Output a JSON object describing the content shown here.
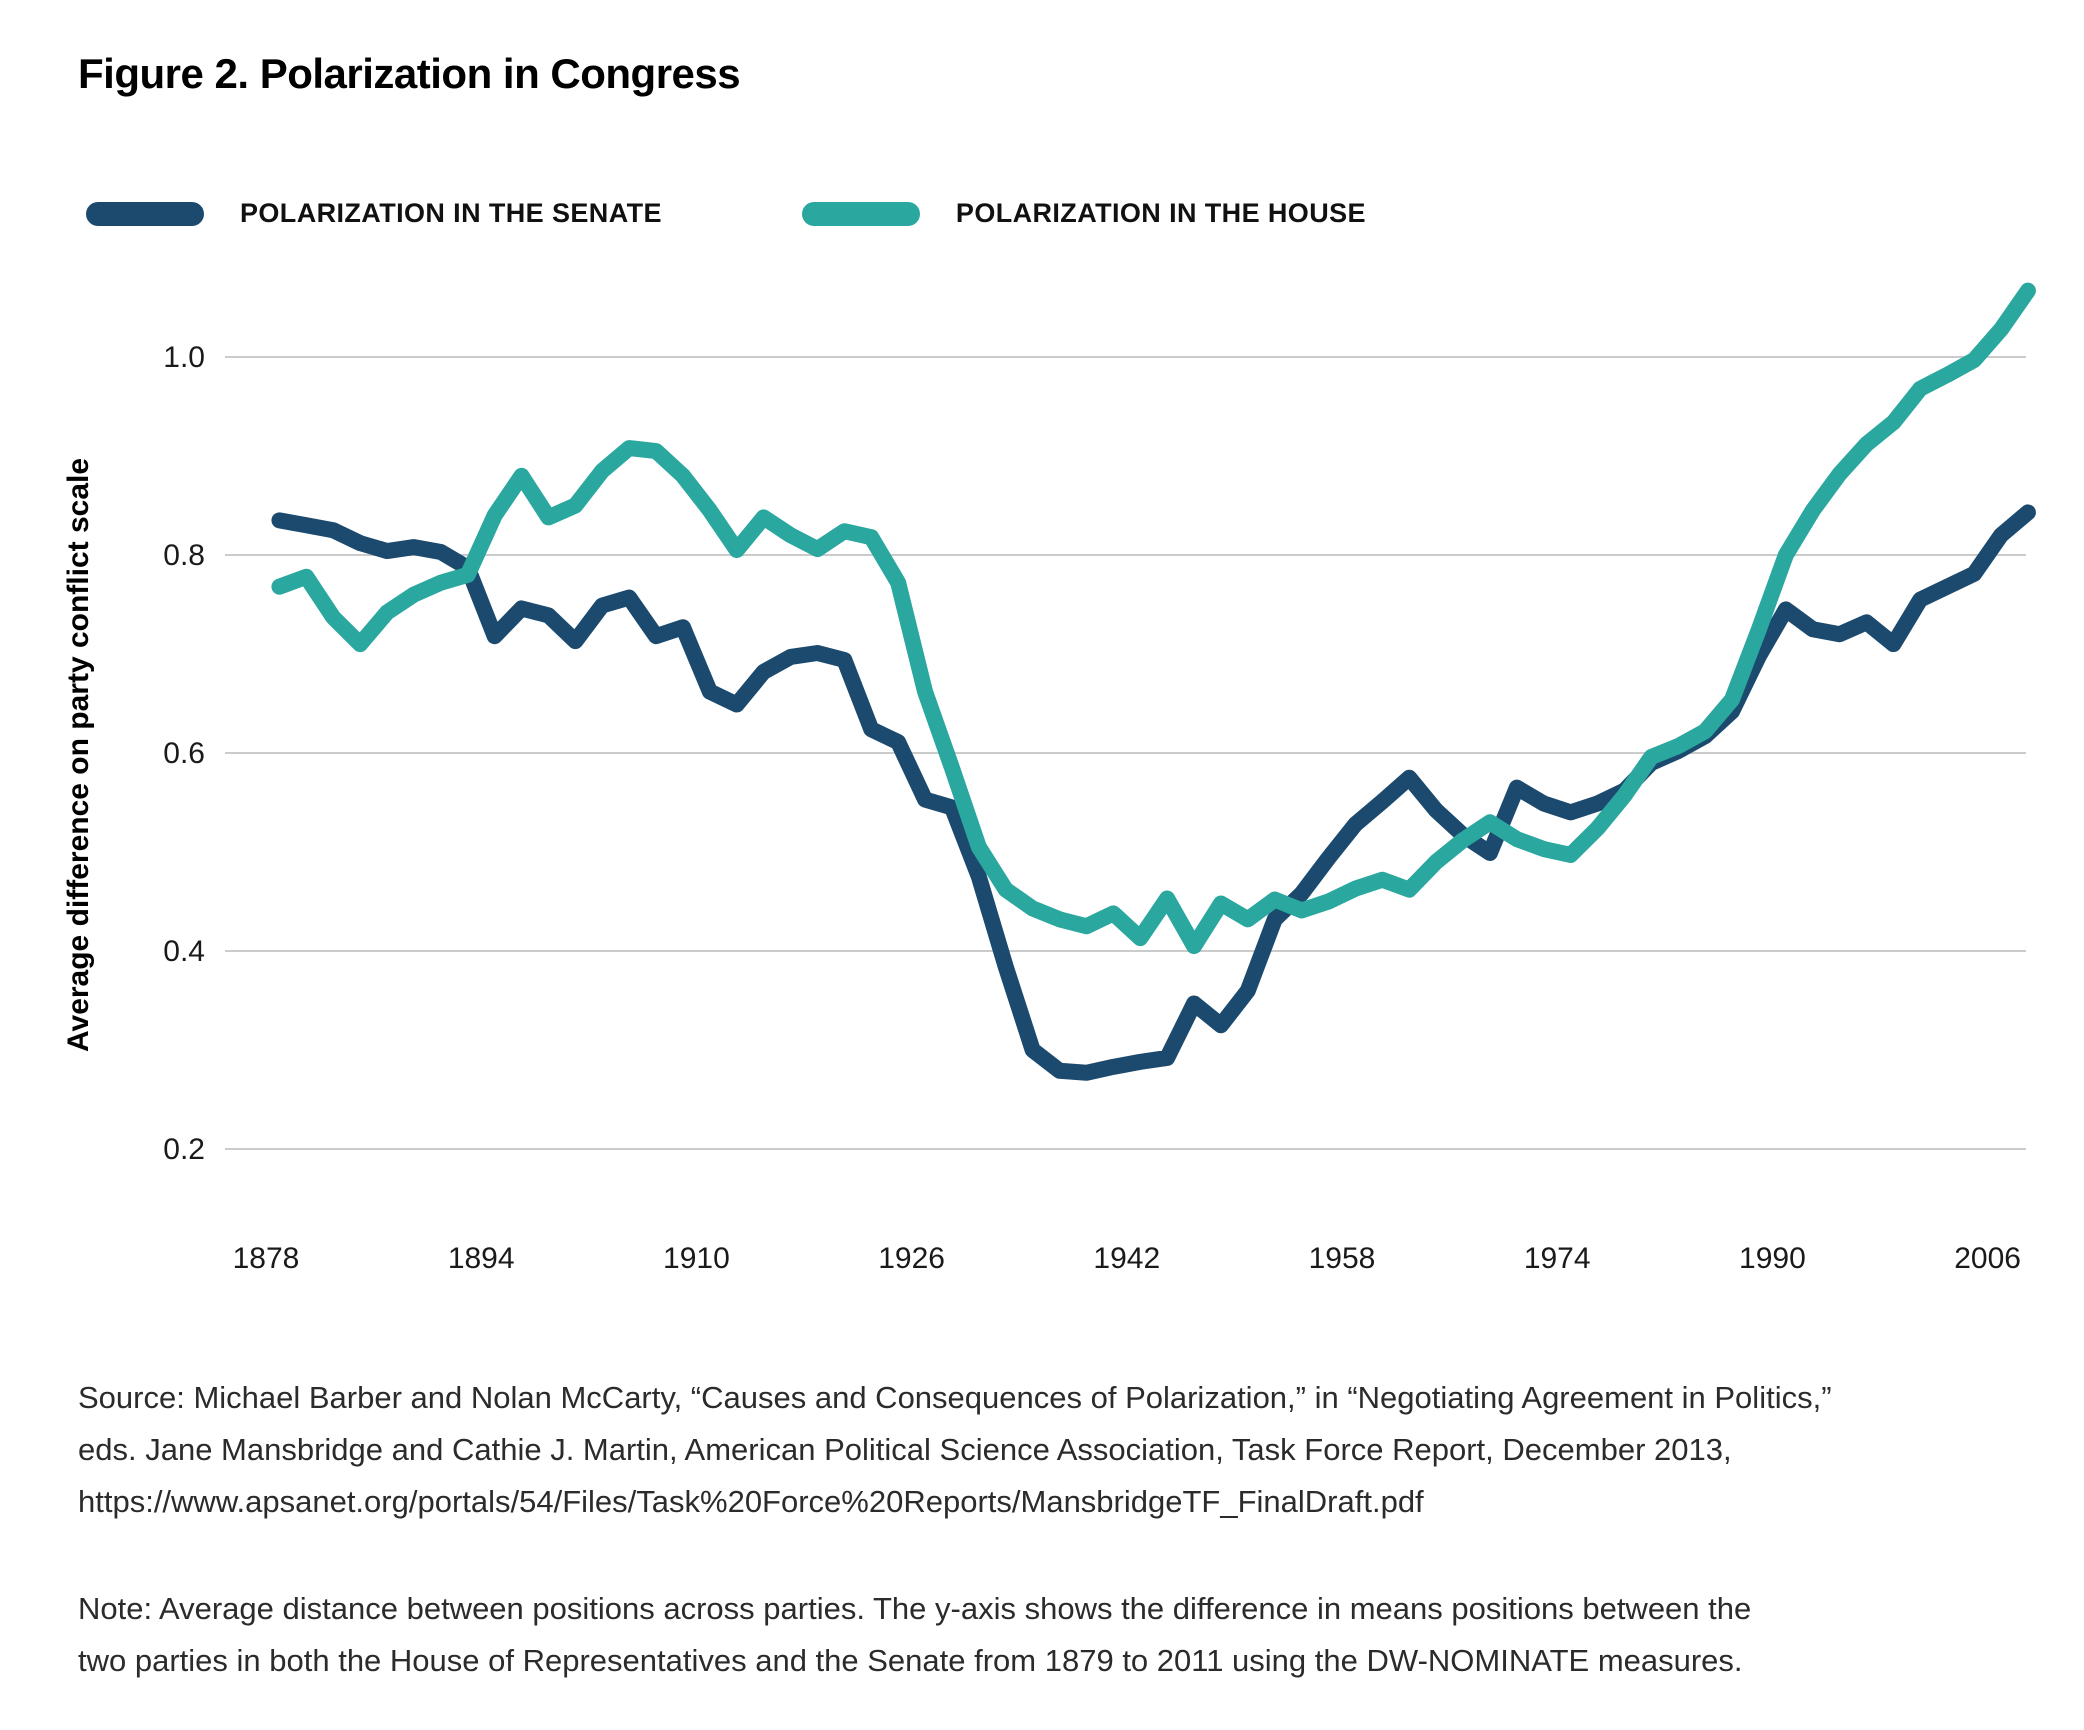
{
  "figure": {
    "title": "Figure 2. Polarization in Congress"
  },
  "legend": {
    "senate_label": "POLARIZATION IN THE SENATE",
    "house_label": "POLARIZATION IN THE HOUSE"
  },
  "colors": {
    "senate": "#1B4A6E",
    "house": "#2AA79E",
    "gridline": "#CBCBCB",
    "axis_text": "#1A1A1A"
  },
  "chart_data": {
    "type": "line",
    "title": "Figure 2. Polarization in Congress",
    "xlabel": "",
    "ylabel": "Average difference on party conflict scale",
    "x_ticks": [
      1878,
      1894,
      1910,
      1926,
      1942,
      1958,
      1974,
      1990,
      2006
    ],
    "y_ticks": [
      1.0,
      0.8,
      0.6,
      0.4,
      0.2
    ],
    "ylim": [
      0.13,
      1.12
    ],
    "xlim": [
      1877,
      2010
    ],
    "grid": "horizontal-only",
    "legend_position": "top-left",
    "x": [
      1879,
      1881,
      1883,
      1885,
      1887,
      1889,
      1891,
      1893,
      1895,
      1897,
      1899,
      1901,
      1903,
      1905,
      1907,
      1909,
      1911,
      1913,
      1915,
      1917,
      1919,
      1921,
      1923,
      1925,
      1927,
      1929,
      1931,
      1933,
      1935,
      1937,
      1939,
      1941,
      1943,
      1945,
      1947,
      1949,
      1951,
      1953,
      1955,
      1957,
      1959,
      1961,
      1963,
      1965,
      1967,
      1969,
      1971,
      1973,
      1975,
      1977,
      1979,
      1981,
      1983,
      1985,
      1987,
      1989,
      1991,
      1993,
      1995,
      1997,
      1999,
      2001,
      2003,
      2005,
      2007,
      2009
    ],
    "series": [
      {
        "name": "POLARIZATION IN THE SENATE",
        "color": "#1B4A6E",
        "values": [
          0.835,
          0.83,
          0.825,
          0.812,
          0.804,
          0.808,
          0.803,
          0.787,
          0.718,
          0.746,
          0.739,
          0.713,
          0.749,
          0.757,
          0.718,
          0.727,
          0.662,
          0.649,
          0.682,
          0.697,
          0.701,
          0.694,
          0.624,
          0.611,
          0.553,
          0.545,
          0.475,
          0.384,
          0.3,
          0.279,
          0.277,
          0.283,
          0.288,
          0.292,
          0.347,
          0.325,
          0.36,
          0.432,
          0.458,
          0.494,
          0.528,
          0.551,
          0.575,
          0.542,
          0.517,
          0.499,
          0.565,
          0.549,
          0.54,
          0.549,
          0.562,
          0.59,
          0.602,
          0.617,
          0.642,
          0.698,
          0.745,
          0.725,
          0.72,
          0.732,
          0.71,
          0.755,
          0.768,
          0.781,
          0.82,
          0.843
        ]
      },
      {
        "name": "POLARIZATION IN THE HOUSE",
        "color": "#2AA79E",
        "values": [
          0.768,
          0.778,
          0.737,
          0.71,
          0.742,
          0.76,
          0.772,
          0.78,
          0.84,
          0.88,
          0.838,
          0.85,
          0.885,
          0.908,
          0.905,
          0.88,
          0.845,
          0.805,
          0.838,
          0.82,
          0.806,
          0.824,
          0.818,
          0.772,
          0.662,
          0.585,
          0.505,
          0.462,
          0.443,
          0.432,
          0.425,
          0.438,
          0.413,
          0.453,
          0.405,
          0.448,
          0.432,
          0.452,
          0.441,
          0.45,
          0.463,
          0.472,
          0.462,
          0.49,
          0.512,
          0.53,
          0.513,
          0.503,
          0.497,
          0.524,
          0.557,
          0.596,
          0.607,
          0.622,
          0.654,
          0.725,
          0.8,
          0.845,
          0.882,
          0.912,
          0.934,
          0.968,
          0.982,
          0.997,
          1.028,
          1.067
        ]
      }
    ]
  },
  "source": {
    "lines": [
      "Source: Michael Barber and Nolan McCarty, “Causes and Consequences of Polarization,” in “Negotiating Agreement in Politics,”",
      "eds. Jane Mansbridge and Cathie J. Martin, American Political Science Association, Task Force Report, December 2013,",
      "https://www.apsanet.org/portals/54/Files/Task%20Force%20Reports/MansbridgeTF_FinalDraft.pdf"
    ]
  },
  "note": {
    "lines": [
      "Note: Average distance between positions across parties. The y-axis shows the difference in means positions between the",
      "two parties in both the House of Representatives and the Senate from 1879 to 2011 using the DW-NOMINATE measures."
    ]
  }
}
